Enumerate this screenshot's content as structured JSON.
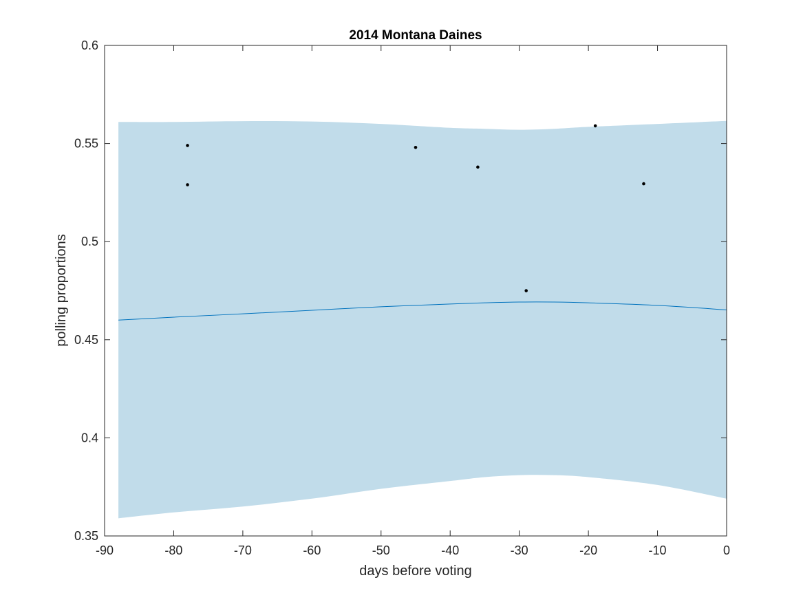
{
  "chart_data": {
    "type": "line",
    "title": "2014 Montana Daines",
    "xlabel": "days before voting",
    "ylabel": "polling proportions",
    "xlim": [
      -90,
      0
    ],
    "ylim": [
      0.35,
      0.6
    ],
    "xticks": [
      -90,
      -80,
      -70,
      -60,
      -50,
      -40,
      -30,
      -20,
      -10,
      0
    ],
    "xtick_labels": [
      "-90",
      "-80",
      "-70",
      "-60",
      "-50",
      "-40",
      "-30",
      "-20",
      "-10",
      "0"
    ],
    "yticks": [
      0.35,
      0.4,
      0.45,
      0.5,
      0.55,
      0.6
    ],
    "ytick_labels": [
      "0.35",
      "0.4",
      "0.45",
      "0.5",
      "0.55",
      "0.6"
    ],
    "grid": false,
    "colors": {
      "band": "#c1dcea",
      "line": "#0072bd",
      "points": "#000000",
      "axes": "#262626"
    },
    "band": {
      "x": [
        -88,
        -80,
        -70,
        -60,
        -50,
        -40,
        -35,
        -30,
        -25,
        -20,
        -10,
        0
      ],
      "upper": [
        0.561,
        0.561,
        0.5614,
        0.5612,
        0.56,
        0.558,
        0.5575,
        0.557,
        0.5575,
        0.5585,
        0.56,
        0.5615
      ],
      "lower": [
        0.359,
        0.362,
        0.365,
        0.369,
        0.374,
        0.378,
        0.38,
        0.381,
        0.381,
        0.38,
        0.376,
        0.369
      ]
    },
    "series": [
      {
        "x": [
          -88,
          -80,
          -70,
          -60,
          -50,
          -40,
          -35,
          -30,
          -25,
          -20,
          -10,
          0
        ],
        "values": [
          0.46,
          0.4615,
          0.4632,
          0.465,
          0.4668,
          0.4682,
          0.4688,
          0.4692,
          0.4692,
          0.4688,
          0.4675,
          0.4652
        ]
      }
    ],
    "points": [
      {
        "x": -78,
        "y": 0.549
      },
      {
        "x": -78,
        "y": 0.529
      },
      {
        "x": -45,
        "y": 0.548
      },
      {
        "x": -36,
        "y": 0.538
      },
      {
        "x": -29,
        "y": 0.475
      },
      {
        "x": -19,
        "y": 0.559
      },
      {
        "x": -12,
        "y": 0.5295
      }
    ]
  }
}
